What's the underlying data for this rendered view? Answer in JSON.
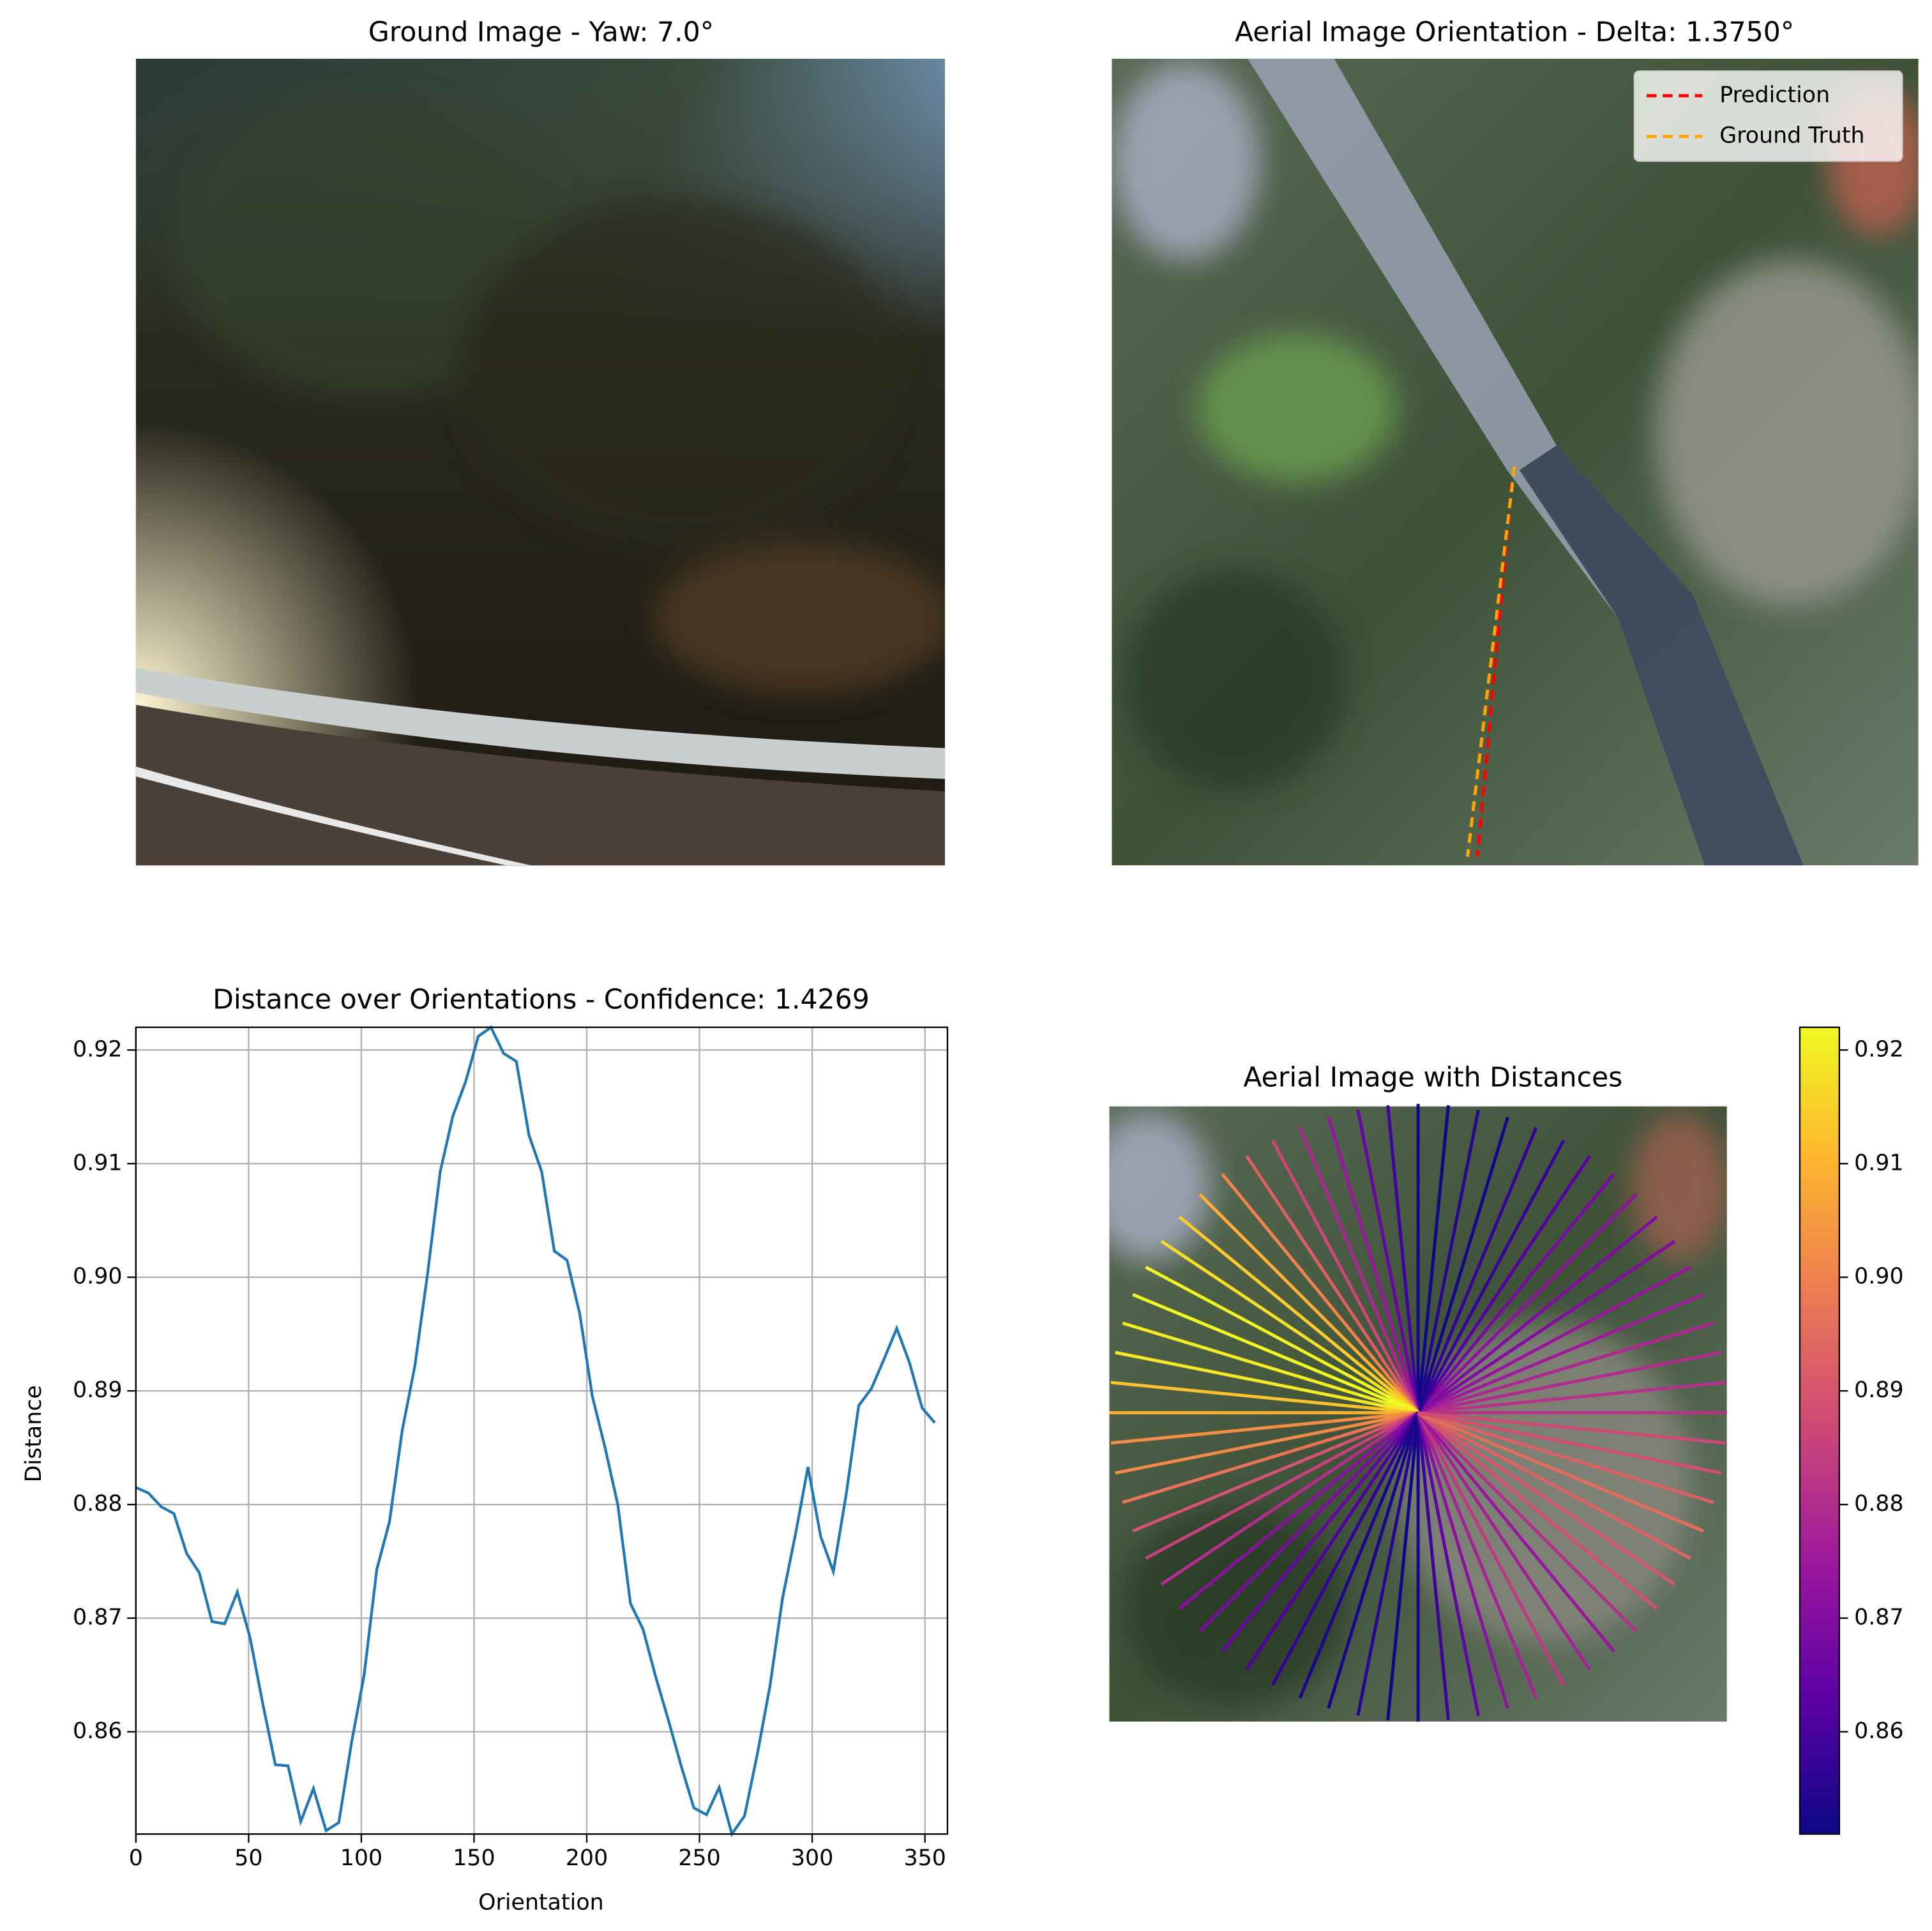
{
  "chart_data": [
    {
      "type": "image",
      "title": "Ground Image - Yaw: 7.0°"
    },
    {
      "type": "image",
      "title": "Aerial Image Orientation - Delta: 1.3750°",
      "series": [
        {
          "name": "Prediction",
          "color": "#ff0000"
        },
        {
          "name": "Ground Truth",
          "color": "#ffa500"
        }
      ]
    },
    {
      "type": "line",
      "title": "Distance over Orientations - Confidence: 1.4269",
      "x_label": "Orientation",
      "y_label": "Distance",
      "color": "#1f77b4",
      "grid": true,
      "x": [
        0,
        5.625,
        11.25,
        16.875,
        22.5,
        28.125,
        33.75,
        39.375,
        45,
        50.625,
        56.25,
        61.875,
        67.5,
        73.125,
        78.75,
        84.375,
        90,
        95.625,
        101.25,
        106.875,
        112.5,
        118.125,
        123.75,
        129.375,
        135,
        140.625,
        146.25,
        151.875,
        157.5,
        163.125,
        168.75,
        174.375,
        180,
        185.625,
        191.25,
        196.875,
        202.5,
        208.125,
        213.75,
        219.375,
        225,
        230.625,
        236.25,
        241.875,
        247.5,
        253.125,
        258.75,
        264.375,
        270,
        275.625,
        281.25,
        286.875,
        292.5,
        298.125,
        303.75,
        309.375,
        315,
        320.625,
        326.25,
        331.875,
        337.5,
        343.125,
        348.75,
        354.375
      ],
      "values": [
        0.8815,
        0.881,
        0.8798,
        0.8792,
        0.8757,
        0.874,
        0.8697,
        0.8695,
        0.8723,
        0.8683,
        0.8625,
        0.8571,
        0.857,
        0.8521,
        0.855,
        0.8513,
        0.852,
        0.859,
        0.865,
        0.8743,
        0.8785,
        0.8865,
        0.8922,
        0.9003,
        0.9093,
        0.9142,
        0.9172,
        0.9212,
        0.922,
        0.9197,
        0.919,
        0.9125,
        0.9093,
        0.9023,
        0.9015,
        0.8968,
        0.8895,
        0.885,
        0.88,
        0.8713,
        0.869,
        0.8648,
        0.861,
        0.857,
        0.8533,
        0.8527,
        0.8551,
        0.851,
        0.8526,
        0.858,
        0.864,
        0.8718,
        0.8773,
        0.8833,
        0.8772,
        0.8741,
        0.8808,
        0.8887,
        0.8902,
        0.8928,
        0.8955,
        0.8925,
        0.8885,
        0.8872
      ],
      "xlim": [
        0,
        360
      ],
      "xticks": [
        0,
        50,
        100,
        150,
        200,
        250,
        300,
        350
      ],
      "ylim": [
        0.851,
        0.922
      ],
      "yticks": [
        0.86,
        0.87,
        0.88,
        0.89,
        {
          "value": 0.9,
          "label": "0.90"
        },
        0.91,
        0.92
      ]
    },
    {
      "type": "polar_lines",
      "title": "Aerial Image with Distances",
      "colors": [
        "#0d0887",
        "#5c01a6",
        "#9c179e",
        "#cc4778",
        "#ed7953",
        "#fdb42f",
        "#f0f921"
      ],
      "clim": [
        0.851,
        0.922
      ],
      "yticks": [
        0.86,
        0.87,
        0.88,
        0.89,
        {
          "value": 0.9,
          "label": "0.90"
        },
        0.91,
        0.92
      ]
    }
  ]
}
